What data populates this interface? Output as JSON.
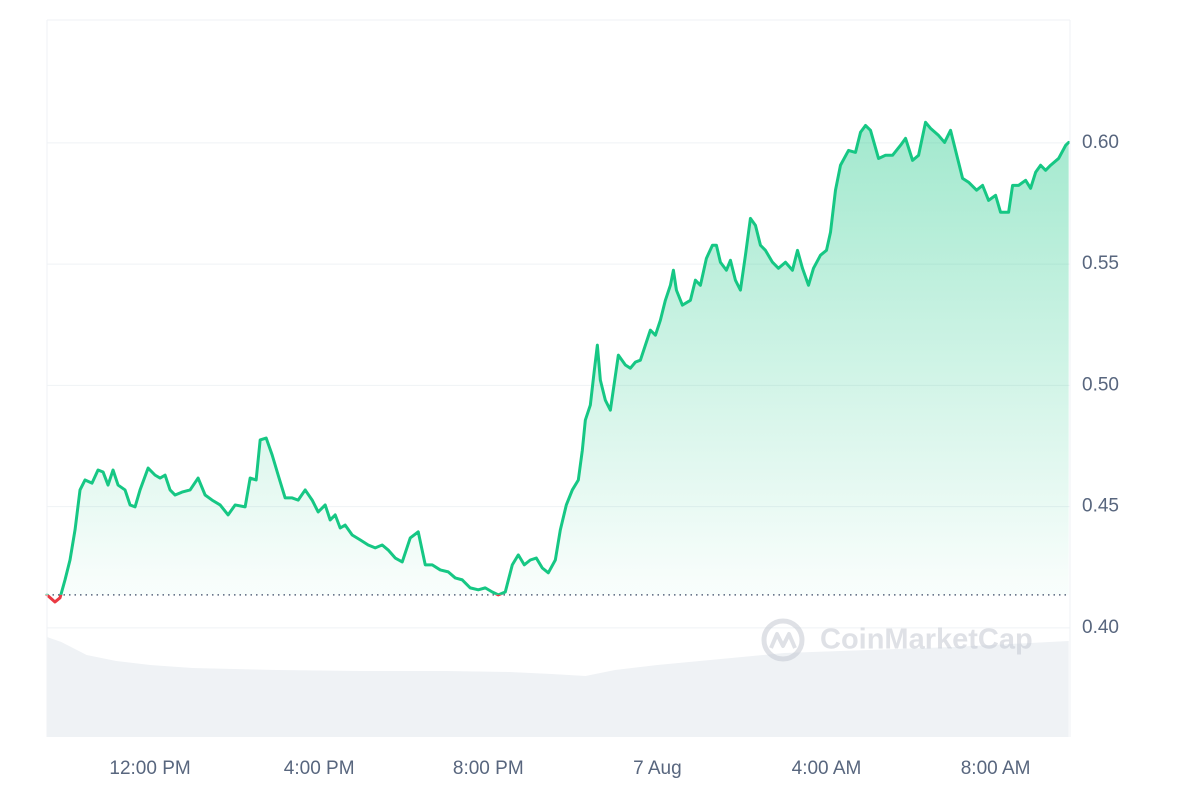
{
  "chart_data": {
    "type": "line",
    "x": [
      9.562,
      9.751,
      9.87,
      9.988,
      10.106,
      10.225,
      10.343,
      10.462,
      10.627,
      10.769,
      10.888,
      11.006,
      11.124,
      11.243,
      11.408,
      11.527,
      11.645,
      11.763,
      11.953,
      12.118,
      12.237,
      12.355,
      12.473,
      12.592,
      12.757,
      12.947,
      13.136,
      13.302,
      13.467,
      13.657,
      13.846,
      14.012,
      14.249,
      14.367,
      14.509,
      14.604,
      14.746,
      14.888,
      15.03,
      15.195,
      15.361,
      15.503,
      15.669,
      15.834,
      15.976,
      16.142,
      16.26,
      16.379,
      16.497,
      16.615,
      16.781,
      16.97,
      17.16,
      17.326,
      17.491,
      17.633,
      17.799,
      17.965,
      18.154,
      18.343,
      18.509,
      18.675,
      18.864,
      19.053,
      19.219,
      19.385,
      19.574,
      19.763,
      19.929,
      20.095,
      20.237,
      20.402,
      20.568,
      20.71,
      20.852,
      20.994,
      21.136,
      21.278,
      21.42,
      21.586,
      21.704,
      21.846,
      21.988,
      22.13,
      22.225,
      22.296,
      22.414,
      22.509,
      22.58,
      22.651,
      22.769,
      22.888,
      23.077,
      23.243,
      23.361,
      23.48,
      23.598,
      23.716,
      23.834,
      23.953,
      24.071,
      24.189,
      24.308,
      24.379,
      24.45,
      24.592,
      24.781,
      24.899,
      25.018,
      25.16,
      25.302,
      25.396,
      25.491,
      25.633,
      25.728,
      25.846,
      25.964,
      26.083,
      26.201,
      26.32,
      26.438,
      26.556,
      26.722,
      26.864,
      27.03,
      27.195,
      27.314,
      27.432,
      27.574,
      27.692,
      27.858,
      28.0,
      28.095,
      28.213,
      28.331,
      28.521,
      28.686,
      28.805,
      28.923,
      29.041,
      29.231,
      29.396,
      29.562,
      29.751,
      29.87,
      30.036,
      30.178,
      30.343,
      30.462,
      30.651,
      30.793,
      30.935,
      31.101,
      31.219,
      31.361,
      31.55,
      31.692,
      31.834,
      32.0,
      32.118,
      32.308,
      32.402,
      32.544,
      32.71,
      32.828,
      32.947,
      33.065,
      33.183,
      33.302,
      33.491,
      33.657,
      33.728
    ],
    "series": [
      {
        "color": "#16c784",
        "down_color": "#ea3943",
        "values": [
          0.4136,
          0.4107,
          0.4124,
          0.4198,
          0.428,
          0.4404,
          0.4569,
          0.461,
          0.4597,
          0.4651,
          0.4643,
          0.4589,
          0.4651,
          0.4589,
          0.4569,
          0.4507,
          0.4499,
          0.4569,
          0.4659,
          0.463,
          0.4618,
          0.463,
          0.4569,
          0.4548,
          0.456,
          0.4569,
          0.4618,
          0.4548,
          0.4527,
          0.4507,
          0.4466,
          0.4507,
          0.4499,
          0.4618,
          0.461,
          0.4775,
          0.4783,
          0.4713,
          0.463,
          0.4536,
          0.4536,
          0.4527,
          0.4569,
          0.4527,
          0.4478,
          0.4507,
          0.4445,
          0.4466,
          0.4412,
          0.4424,
          0.4383,
          0.4363,
          0.4342,
          0.433,
          0.4342,
          0.4321,
          0.4288,
          0.4272,
          0.4371,
          0.4396,
          0.426,
          0.426,
          0.4239,
          0.4231,
          0.4206,
          0.4198,
          0.4165,
          0.4157,
          0.4165,
          0.4148,
          0.4136,
          0.4148,
          0.426,
          0.4301,
          0.426,
          0.428,
          0.4288,
          0.4247,
          0.4227,
          0.428,
          0.4404,
          0.4507,
          0.4569,
          0.461,
          0.4733,
          0.4857,
          0.4919,
          0.5063,
          0.5166,
          0.5022,
          0.4939,
          0.4898,
          0.5125,
          0.5084,
          0.5071,
          0.5096,
          0.5104,
          0.5166,
          0.5228,
          0.5207,
          0.5269,
          0.5351,
          0.5413,
          0.5475,
          0.5393,
          0.5331,
          0.5351,
          0.5434,
          0.5413,
          0.5524,
          0.5578,
          0.5578,
          0.5508,
          0.5475,
          0.5516,
          0.5434,
          0.5393,
          0.5537,
          0.5689,
          0.566,
          0.5578,
          0.5557,
          0.5508,
          0.5483,
          0.5508,
          0.5475,
          0.5557,
          0.5483,
          0.5413,
          0.5483,
          0.5537,
          0.5557,
          0.5632,
          0.5805,
          0.5908,
          0.5969,
          0.5961,
          0.6044,
          0.6072,
          0.6052,
          0.5936,
          0.5949,
          0.5949,
          0.599,
          0.6019,
          0.5928,
          0.5949,
          0.6085,
          0.606,
          0.6031,
          0.6002,
          0.6052,
          0.5936,
          0.5854,
          0.5838,
          0.5805,
          0.5825,
          0.5763,
          0.5784,
          0.5714,
          0.5714,
          0.5825,
          0.5825,
          0.5846,
          0.5813,
          0.5879,
          0.5908,
          0.5887,
          0.5908,
          0.5936,
          0.599,
          0.6002
        ]
      }
    ],
    "baseline": 0.4136,
    "volume": {
      "color": "#eff2f5",
      "x": [
        9.562,
        9.9,
        10.5,
        11.2,
        12.0,
        13.0,
        15.0,
        17.0,
        19.0,
        20.5,
        21.5,
        22.3,
        23.0,
        24.0,
        25.5,
        27.0,
        29.0,
        31.0,
        33.728
      ],
      "values": [
        100,
        95,
        82,
        76,
        72,
        69,
        67,
        66,
        66,
        65,
        63,
        61,
        67,
        72,
        78,
        84,
        87,
        90,
        96
      ]
    },
    "vlim": [
      0,
      717
    ],
    "xlim": [
      9.562,
      33.76
    ],
    "xticks": [
      {
        "value": 12,
        "label": "12:00 PM"
      },
      {
        "value": 16,
        "label": "4:00 PM"
      },
      {
        "value": 20,
        "label": "8:00 PM"
      },
      {
        "value": 24,
        "label": "7 Aug"
      },
      {
        "value": 28,
        "label": "4:00 AM"
      },
      {
        "value": 32,
        "label": "8:00 AM"
      }
    ],
    "ylim": [
      0.355,
      0.6507
    ],
    "yticks": [
      {
        "value": 0.4,
        "label": "0.40"
      },
      {
        "value": 0.45,
        "label": "0.45"
      },
      {
        "value": 0.5,
        "label": "0.50"
      },
      {
        "value": 0.55,
        "label": "0.55"
      },
      {
        "value": 0.6,
        "label": "0.60"
      }
    ],
    "grid": true,
    "watermark": "CoinMarketCap"
  }
}
